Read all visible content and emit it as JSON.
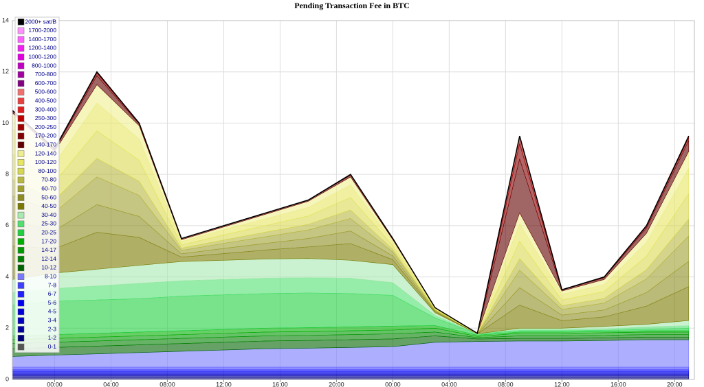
{
  "chart_data": {
    "type": "stacked-area",
    "title": "Pending Transaction Fee in BTC",
    "x": [
      -3,
      0,
      3,
      6,
      9,
      12,
      15,
      18,
      21,
      24,
      27,
      30,
      33,
      36,
      39,
      42,
      45
    ],
    "xlim": [
      -3,
      45.4
    ],
    "xticks": [
      {
        "value": 0,
        "label": "00:00"
      },
      {
        "value": 4,
        "label": "04:00"
      },
      {
        "value": 8,
        "label": "08:00"
      },
      {
        "value": 12,
        "label": "12:00"
      },
      {
        "value": 16,
        "label": "16:00"
      },
      {
        "value": 20,
        "label": "20:00"
      },
      {
        "value": 24,
        "label": "00:00"
      },
      {
        "value": 28,
        "label": "04:00"
      },
      {
        "value": 32,
        "label": "08:00"
      },
      {
        "value": 36,
        "label": "12:00"
      },
      {
        "value": 40,
        "label": "16:00"
      },
      {
        "value": 44,
        "label": "20:00"
      }
    ],
    "ylim": [
      0,
      14
    ],
    "yticks": [
      0,
      2,
      4,
      6,
      8,
      10,
      12,
      14
    ],
    "grid": true,
    "legend": "upper left",
    "series": [
      {
        "name": "0-1",
        "color": "#555555",
        "values": [
          0.02,
          0.02,
          0.02,
          0.02,
          0.02,
          0.02,
          0.02,
          0.02,
          0.02,
          0.02,
          0.02,
          0.02,
          0.02,
          0.02,
          0.02,
          0.02,
          0.02
        ]
      },
      {
        "name": "1-2",
        "color": "#00007a",
        "values": [
          0.08,
          0.08,
          0.08,
          0.08,
          0.08,
          0.08,
          0.08,
          0.08,
          0.08,
          0.08,
          0.08,
          0.08,
          0.08,
          0.08,
          0.08,
          0.08,
          0.08
        ]
      },
      {
        "name": "2-3",
        "color": "#0000a0",
        "values": [
          0.06,
          0.06,
          0.06,
          0.06,
          0.06,
          0.06,
          0.06,
          0.06,
          0.06,
          0.06,
          0.06,
          0.06,
          0.06,
          0.06,
          0.06,
          0.06,
          0.06
        ]
      },
      {
        "name": "3-4",
        "color": "#0000c0",
        "values": [
          0.05,
          0.05,
          0.05,
          0.05,
          0.05,
          0.05,
          0.05,
          0.05,
          0.05,
          0.05,
          0.05,
          0.05,
          0.05,
          0.05,
          0.05,
          0.05,
          0.05
        ]
      },
      {
        "name": "4-5",
        "color": "#0000d8",
        "values": [
          0.05,
          0.05,
          0.05,
          0.05,
          0.05,
          0.05,
          0.05,
          0.05,
          0.05,
          0.05,
          0.05,
          0.05,
          0.05,
          0.05,
          0.05,
          0.05,
          0.05
        ]
      },
      {
        "name": "5-6",
        "color": "#0000f0",
        "values": [
          0.06,
          0.06,
          0.06,
          0.06,
          0.06,
          0.06,
          0.06,
          0.06,
          0.06,
          0.06,
          0.06,
          0.06,
          0.06,
          0.06,
          0.06,
          0.06,
          0.06
        ]
      },
      {
        "name": "6-7",
        "color": "#2020ff",
        "values": [
          0.06,
          0.06,
          0.06,
          0.06,
          0.06,
          0.06,
          0.06,
          0.06,
          0.06,
          0.06,
          0.06,
          0.06,
          0.06,
          0.06,
          0.06,
          0.06,
          0.06
        ]
      },
      {
        "name": "7-8",
        "color": "#4040ff",
        "values": [
          0.1,
          0.1,
          0.1,
          0.1,
          0.1,
          0.1,
          0.1,
          0.1,
          0.1,
          0.1,
          0.1,
          0.1,
          0.1,
          0.1,
          0.1,
          0.1,
          0.1
        ]
      },
      {
        "name": "8-10",
        "color": "#7878ff",
        "values": [
          0.42,
          0.47,
          0.52,
          0.57,
          0.62,
          0.67,
          0.72,
          0.74,
          0.77,
          0.8,
          0.97,
          1.0,
          1.02,
          1.02,
          1.04,
          1.07,
          1.07
        ]
      },
      {
        "name": "10-12",
        "color": "#006400",
        "values": [
          0.3,
          0.3,
          0.3,
          0.3,
          0.3,
          0.3,
          0.3,
          0.3,
          0.3,
          0.3,
          0.25,
          0.1,
          0.1,
          0.1,
          0.1,
          0.1,
          0.1
        ]
      },
      {
        "name": "12-14",
        "color": "#008000",
        "values": [
          0.2,
          0.2,
          0.2,
          0.2,
          0.2,
          0.2,
          0.2,
          0.2,
          0.2,
          0.2,
          0.15,
          0.05,
          0.1,
          0.1,
          0.1,
          0.1,
          0.1
        ]
      },
      {
        "name": "14-17",
        "color": "#009a00",
        "values": [
          0.15,
          0.15,
          0.15,
          0.15,
          0.15,
          0.15,
          0.15,
          0.15,
          0.15,
          0.15,
          0.15,
          0.05,
          0.1,
          0.1,
          0.1,
          0.1,
          0.1
        ]
      },
      {
        "name": "17-20",
        "color": "#00b000",
        "values": [
          0.15,
          0.15,
          0.15,
          0.15,
          0.15,
          0.15,
          0.15,
          0.15,
          0.15,
          0.15,
          0.1,
          0.05,
          0.05,
          0.05,
          0.05,
          0.05,
          0.05
        ]
      },
      {
        "name": "20-25",
        "color": "#20d040",
        "values": [
          1.2,
          1.3,
          1.3,
          1.3,
          1.35,
          1.35,
          1.35,
          1.35,
          1.3,
          1.2,
          0.3,
          0.05,
          0.05,
          0.05,
          0.05,
          0.05,
          0.1
        ]
      },
      {
        "name": "25-30",
        "color": "#50e070",
        "values": [
          0.5,
          0.5,
          0.55,
          0.6,
          0.6,
          0.6,
          0.6,
          0.6,
          0.6,
          0.5,
          0.1,
          0,
          0.05,
          0.05,
          0.05,
          0.1,
          0.1
        ]
      },
      {
        "name": "30-40",
        "color": "#a8eab0",
        "values": [
          0.5,
          0.6,
          0.65,
          0.7,
          0.75,
          0.75,
          0.75,
          0.75,
          0.7,
          0.7,
          0.1,
          0,
          0.05,
          0.05,
          0.1,
          0.1,
          0.2
        ]
      },
      {
        "name": "40-50",
        "color": "#7a7a00",
        "values": [
          1.3,
          0.95,
          1.44,
          1.09,
          0.17,
          0.26,
          0.35,
          0.45,
          0.65,
          0.19,
          0.04,
          0,
          0.9,
          0.29,
          0.37,
          0.71,
          1.32
        ]
      },
      {
        "name": "50-60",
        "color": "#8c8c20",
        "values": [
          0.98,
          0.71,
          1.08,
          0.82,
          0.13,
          0.2,
          0.26,
          0.33,
          0.49,
          0.15,
          0.03,
          0,
          0.68,
          0.22,
          0.27,
          0.53,
          0.99
        ]
      },
      {
        "name": "60-70",
        "color": "#a0a030",
        "values": [
          0.98,
          0.71,
          1.08,
          0.82,
          0.13,
          0.2,
          0.26,
          0.33,
          0.49,
          0.15,
          0.03,
          0,
          0.68,
          0.22,
          0.27,
          0.53,
          0.99
        ]
      },
      {
        "name": "70-80",
        "color": "#b8b840",
        "values": [
          0.65,
          0.48,
          0.72,
          0.55,
          0.09,
          0.13,
          0.18,
          0.22,
          0.33,
          0.1,
          0.02,
          0,
          0.45,
          0.15,
          0.18,
          0.36,
          0.66
        ]
      },
      {
        "name": "80-100",
        "color": "#d8d850",
        "values": [
          0.98,
          0.71,
          1.08,
          0.82,
          0.13,
          0.2,
          0.26,
          0.33,
          0.49,
          0.15,
          0.03,
          0,
          0.68,
          0.22,
          0.27,
          0.53,
          0.99
        ]
      },
      {
        "name": "100-120",
        "color": "#e6e660",
        "values": [
          0.98,
          0.71,
          1.08,
          0.82,
          0.13,
          0.2,
          0.26,
          0.33,
          0.49,
          0.15,
          0.03,
          0,
          0.68,
          0.22,
          0.27,
          0.53,
          0.99
        ]
      },
      {
        "name": "120-140",
        "color": "#eeee90",
        "values": [
          0.63,
          0.48,
          0.72,
          0.53,
          0.07,
          0.11,
          0.18,
          0.24,
          0.31,
          0.08,
          0.02,
          0.02,
          0.43,
          0.13,
          0.2,
          0.36,
          0.66
        ]
      },
      {
        "name": "140-170",
        "color": "#600000",
        "values": [
          0.07,
          0.07,
          0.35,
          0.07,
          0.04,
          0.04,
          0.04,
          0.04,
          0.07,
          0.04,
          0,
          0,
          2.1,
          0.04,
          0.07,
          0.21,
          0.42
        ]
      },
      {
        "name": "170-200",
        "color": "#800000",
        "values": [
          0.02,
          0.02,
          0.1,
          0.02,
          0.01,
          0.01,
          0.01,
          0.01,
          0.02,
          0.01,
          0,
          0,
          0.6,
          0.01,
          0.02,
          0.06,
          0.12
        ]
      },
      {
        "name": "200-250",
        "color": "#a00000",
        "values": [
          0.01,
          0.01,
          0.05,
          0.01,
          0,
          0,
          0,
          0,
          0.01,
          0,
          0,
          0,
          0.3,
          0,
          0.01,
          0.03,
          0.06
        ]
      },
      {
        "name": "250-300",
        "color": "#c00000",
        "values": [
          0,
          0,
          0,
          0,
          0,
          0,
          0,
          0,
          0,
          0,
          0,
          0,
          0,
          0,
          0,
          0,
          0
        ]
      },
      {
        "name": "300-400",
        "color": "#e02020",
        "values": [
          0,
          0,
          0,
          0,
          0,
          0,
          0,
          0,
          0,
          0,
          0,
          0,
          0,
          0,
          0,
          0,
          0
        ]
      },
      {
        "name": "400-500",
        "color": "#e84040",
        "values": [
          0,
          0,
          0,
          0,
          0,
          0,
          0,
          0,
          0,
          0,
          0,
          0,
          0,
          0,
          0,
          0,
          0
        ]
      },
      {
        "name": "500-600",
        "color": "#f07070",
        "values": [
          0,
          0,
          0,
          0,
          0,
          0,
          0,
          0,
          0,
          0,
          0,
          0,
          0,
          0,
          0,
          0,
          0
        ]
      },
      {
        "name": "600-700",
        "color": "#800080",
        "values": [
          0,
          0,
          0,
          0,
          0,
          0,
          0,
          0,
          0,
          0,
          0,
          0,
          0,
          0,
          0,
          0,
          0
        ]
      },
      {
        "name": "700-800",
        "color": "#a000a0",
        "values": [
          0,
          0,
          0,
          0,
          0,
          0,
          0,
          0,
          0,
          0,
          0,
          0,
          0,
          0,
          0,
          0,
          0
        ]
      },
      {
        "name": "800-1000",
        "color": "#c000c0",
        "values": [
          0,
          0,
          0,
          0,
          0,
          0,
          0,
          0,
          0,
          0,
          0,
          0,
          0,
          0,
          0,
          0,
          0
        ]
      },
      {
        "name": "1000-1200",
        "color": "#e000e0",
        "values": [
          0,
          0,
          0,
          0,
          0,
          0,
          0,
          0,
          0,
          0,
          0,
          0,
          0,
          0,
          0,
          0,
          0
        ]
      },
      {
        "name": "1200-1400",
        "color": "#f020f0",
        "values": [
          0,
          0,
          0,
          0,
          0,
          0,
          0,
          0,
          0,
          0,
          0,
          0,
          0,
          0,
          0,
          0,
          0
        ]
      },
      {
        "name": "1400-1700",
        "color": "#ff60ff",
        "values": [
          0,
          0,
          0,
          0,
          0,
          0,
          0,
          0,
          0,
          0,
          0,
          0,
          0,
          0,
          0,
          0,
          0
        ]
      },
      {
        "name": "1700-2000",
        "color": "#ff90ff",
        "values": [
          0,
          0,
          0,
          0,
          0,
          0,
          0,
          0,
          0,
          0,
          0,
          0,
          0,
          0,
          0,
          0,
          0
        ]
      },
      {
        "name": "2000+ sat/B",
        "color": "#000000",
        "values": [
          0,
          0,
          0,
          0,
          0,
          0,
          0,
          0,
          0,
          0,
          0,
          0,
          0,
          0,
          0,
          0,
          0
        ]
      }
    ]
  }
}
